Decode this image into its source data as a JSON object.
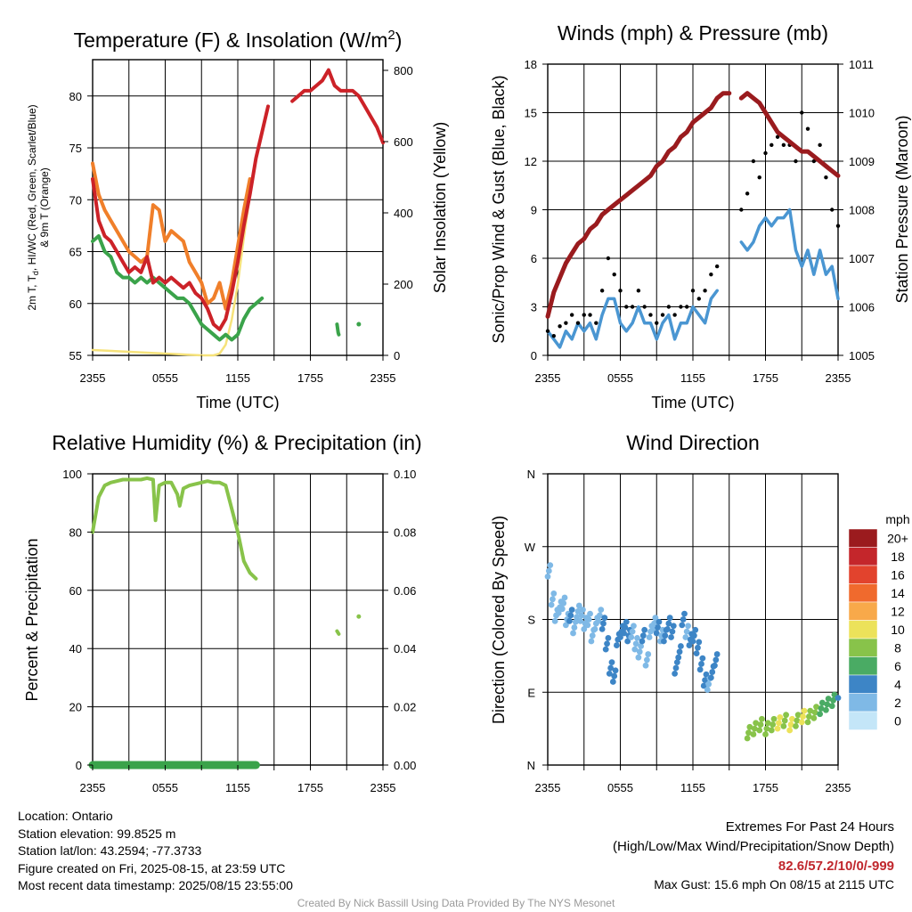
{
  "colors": {
    "temp": "#cc2228",
    "dew": "#3aa34a",
    "heat_index": "#4472c4",
    "temp9m": "#f07f2a",
    "solar": "#f6e27a",
    "pressure": "#9a1b1e",
    "sonic": "#4a96d2",
    "gust": "#000000",
    "rh": "#88c34a"
  },
  "panels": {
    "temp": {
      "title": "Temperature (F) & Insolation (W/m²)",
      "ylabel_line1": "2m T, T",
      "ylabel_sub": "d",
      "ylabel_line1b": ", HI/WC (Red, Green, Scarlet/Blue)",
      "ylabel_line2": "& 9m T (Orange)",
      "y2label": "Solar Insolation (Yellow)",
      "xlabel": "Time (UTC)",
      "yticks": [
        "55",
        "60",
        "65",
        "70",
        "75",
        "80"
      ],
      "y2ticks": [
        "0",
        "200",
        "400",
        "600",
        "800"
      ],
      "xticks": [
        "2355",
        "0555",
        "1155",
        "1755",
        "2355"
      ]
    },
    "wind": {
      "title": "Winds (mph) & Pressure (mb)",
      "ylabel": "Sonic/Prop Wind & Gust (Blue, Black)",
      "y2label": "Station Pressure (Maroon)",
      "xlabel": "Time (UTC)",
      "yticks": [
        "0",
        "3",
        "6",
        "9",
        "12",
        "15",
        "18"
      ],
      "y2ticks": [
        "1005",
        "1006",
        "1007",
        "1008",
        "1009",
        "1010",
        "1011"
      ],
      "xticks": [
        "2355",
        "0555",
        "1155",
        "1755",
        "2355"
      ]
    },
    "rh": {
      "title": "Relative Humidity (%) & Precipitation (in)",
      "ylabel": "Percent & Precipitation",
      "yticks": [
        "0",
        "20",
        "40",
        "60",
        "80",
        "100"
      ],
      "y2ticks": [
        "0.00",
        "0.02",
        "0.04",
        "0.06",
        "0.08",
        "0.10"
      ],
      "xticks": [
        "2355",
        "0555",
        "1155",
        "1755",
        "2355"
      ]
    },
    "dir": {
      "title": "Wind Direction",
      "ylabel": "Direction (Colored By Speed)",
      "yticks": [
        "N",
        "E",
        "S",
        "W",
        "N"
      ],
      "xticks": [
        "2355",
        "0555",
        "1155",
        "1755",
        "2355"
      ],
      "legend_title": "mph",
      "legend_labels": [
        "20+",
        "18",
        "16",
        "14",
        "12",
        "10",
        "8",
        "6",
        "4",
        "2",
        "0"
      ],
      "legend_colors": [
        "#9b1b1e",
        "#c4262b",
        "#e2432d",
        "#f06a2d",
        "#f8a94a",
        "#ece25a",
        "#88c34a",
        "#4aab64",
        "#3d85c6",
        "#7fb9e6",
        "#c4e6f8"
      ]
    }
  },
  "info": {
    "location": "Location: Ontario",
    "elevation": "Station elevation: 99.8525 m",
    "latlon": "Station lat/lon: 43.2594; -77.3733",
    "created": "Figure created on Fri, 2025-08-15, at 23:59 UTC",
    "recent": "Most recent data timestamp: 2025/08/15 23:55:00"
  },
  "extremes": {
    "title": "Extremes For Past 24 Hours",
    "subtitle": "(High/Low/Max Wind/Precipitation/Snow Depth)",
    "values": "82.6/57.2/10/0/-999",
    "gust": "Max Gust: 15.6 mph On 08/15 at 2115 UTC"
  },
  "credit": "Created By Nick Bassill Using Data Provided By The NYS Mesonet",
  "chart_data": [
    {
      "type": "line",
      "title": "Temperature (F) & Insolation (W/m²)",
      "xlabel": "Time (UTC)",
      "ylim": [
        55,
        83.5
      ],
      "y2lim": [
        0,
        830
      ],
      "x_hours": [
        0,
        24
      ],
      "series": [
        {
          "name": "2m T (Red)",
          "x": [
            0,
            0.5,
            1,
            1.5,
            2,
            2.5,
            3,
            3.5,
            4,
            4.5,
            5,
            5.5,
            6,
            6.5,
            7,
            7.5,
            8,
            8.5,
            9,
            9.5,
            10,
            10.5,
            11,
            11.5,
            12,
            12.5,
            13,
            13.5,
            14,
            14.5,
            15,
            15.5,
            16,
            16.5,
            17,
            17.5,
            18,
            18.5,
            19,
            19.5,
            20,
            20.5,
            21,
            21.5,
            22,
            22.5,
            23,
            23.5,
            24
          ],
          "values": [
            72,
            68,
            66.5,
            66,
            65,
            64,
            63,
            63.5,
            63,
            64.5,
            62,
            62.5,
            62,
            62.5,
            62,
            61.5,
            62,
            61,
            60.5,
            59.5,
            58,
            57.5,
            58.5,
            61,
            64,
            67.5,
            70.5,
            74,
            76.5,
            79,
            null,
            null,
            null,
            79.5,
            80,
            80.5,
            80.5,
            81,
            81.5,
            82.5,
            81,
            80.5,
            80.5,
            80.5,
            80,
            79,
            78,
            77,
            75.5
          ]
        },
        {
          "name": "9m T (Orange)",
          "x": [
            0,
            0.5,
            1,
            1.5,
            2,
            2.5,
            3,
            3.5,
            4,
            4.5,
            5,
            5.5,
            6,
            6.5,
            7,
            7.5,
            8,
            8.5,
            9,
            9.5,
            10,
            10.5,
            11,
            11.5,
            12,
            12.5,
            13
          ],
          "values": [
            73.5,
            70.5,
            69,
            68,
            67,
            66,
            65,
            64.5,
            64,
            64.5,
            69.5,
            69,
            66,
            67,
            66.5,
            66,
            64,
            63,
            62,
            60,
            60.5,
            62,
            59.5,
            62,
            65.5,
            69,
            72
          ]
        },
        {
          "name": "Td (Green)",
          "x": [
            0,
            0.5,
            1,
            1.5,
            2,
            2.5,
            3,
            3.5,
            4,
            4.5,
            5,
            5.5,
            6,
            6.5,
            7,
            7.5,
            8,
            8.5,
            9,
            9.5,
            10,
            10.5,
            11,
            11.5,
            12,
            12.5,
            13,
            13.5,
            14
          ],
          "values": [
            66,
            66.5,
            65,
            64.5,
            63,
            62.5,
            62.5,
            62,
            62.5,
            62,
            62.5,
            62,
            61.5,
            61,
            60.5,
            60.5,
            60,
            59,
            58,
            57.5,
            57,
            56.5,
            57,
            56.5,
            57,
            58.5,
            59.5,
            60,
            60.5
          ]
        },
        {
          "name": "Td (Green) late",
          "x": [
            20.2,
            20.3,
            20.35
          ],
          "values": [
            58,
            57.2,
            57
          ]
        },
        {
          "name": "Td (Green) late2",
          "x": [
            22.0
          ],
          "values": [
            58
          ]
        },
        {
          "name": "Solar Insolation (Yellow)",
          "x": [
            0,
            9,
            10,
            10.5,
            11,
            11.5,
            12,
            12.5,
            13
          ],
          "values": [
            15,
            0,
            0,
            5,
            30,
            100,
            200,
            330,
            450
          ]
        }
      ]
    },
    {
      "type": "line",
      "title": "Winds (mph) & Pressure (mb)",
      "xlabel": "Time (UTC)",
      "ylim": [
        0,
        18
      ],
      "y2lim": [
        1005,
        1011
      ],
      "series": [
        {
          "name": "Station Pressure (Maroon)",
          "x": [
            0,
            0.5,
            1,
            1.5,
            2,
            2.5,
            3,
            3.5,
            4,
            4.5,
            5,
            5.5,
            6,
            6.5,
            7,
            7.5,
            8,
            8.5,
            9,
            9.5,
            10,
            10.5,
            11,
            11.5,
            12,
            12.5,
            13,
            13.5,
            14,
            14.5,
            15,
            15.5,
            16,
            16.5,
            17,
            17.5,
            18,
            18.5,
            19,
            19.5,
            20,
            20.5,
            21,
            21.5,
            22,
            22.5,
            23,
            23.5,
            24
          ],
          "values": [
            1005.8,
            1006.3,
            1006.6,
            1006.9,
            1007.1,
            1007.3,
            1007.4,
            1007.6,
            1007.7,
            1007.9,
            1008,
            1008.1,
            1008.2,
            1008.3,
            1008.4,
            1008.5,
            1008.6,
            1008.7,
            1008.9,
            1009,
            1009.2,
            1009.3,
            1009.5,
            1009.6,
            1009.8,
            1009.9,
            1010,
            1010.1,
            1010.3,
            1010.4,
            1010.4,
            null,
            1010.3,
            1010.4,
            1010.3,
            1010.2,
            1010,
            1009.8,
            1009.6,
            1009.5,
            1009.4,
            1009.3,
            1009.2,
            1009.2,
            1009.1,
            1009,
            1008.9,
            1008.8,
            1008.7
          ]
        },
        {
          "name": "Sonic/Prop Wind (Blue)",
          "x": [
            0,
            0.5,
            1,
            1.5,
            2,
            2.5,
            3,
            3.5,
            4,
            4.5,
            5,
            5.5,
            6,
            6.5,
            7,
            7.5,
            8,
            8.5,
            9,
            9.5,
            10,
            10.5,
            11,
            11.5,
            12,
            12.5,
            13,
            13.5,
            14,
            14.5,
            15,
            15.5,
            16,
            16.5,
            17,
            17.5,
            18,
            18.5,
            19,
            19.5,
            20,
            20.5,
            21,
            21.5,
            22,
            22.5,
            23,
            23.5,
            24
          ],
          "values": [
            1.5,
            1,
            0.5,
            1.5,
            1,
            2,
            1.5,
            2,
            1,
            2.5,
            3.5,
            3.5,
            2,
            1.5,
            2,
            3,
            2,
            2,
            1,
            2,
            2.5,
            1,
            2,
            2,
            3,
            2.5,
            2,
            3.5,
            4,
            null,
            null,
            null,
            7,
            6.5,
            7,
            8,
            8.5,
            8,
            8.5,
            8.5,
            9,
            6.5,
            5.5,
            6.5,
            5,
            6.5,
            5,
            5.5,
            3.5
          ]
        },
        {
          "name": "Gust (Black)",
          "x": [
            0,
            0.5,
            1,
            1.5,
            2,
            2.5,
            3,
            3.5,
            4,
            4.5,
            5,
            5.5,
            6,
            6.5,
            7,
            7.5,
            8,
            8.5,
            9,
            9.5,
            10,
            10.5,
            11,
            11.5,
            12,
            12.5,
            13,
            13.5,
            14,
            14.5,
            15,
            15.5,
            16,
            16.5,
            17,
            17.5,
            18,
            18.5,
            19,
            19.5,
            20,
            20.5,
            21,
            21.5,
            22,
            22.5,
            23,
            23.5,
            24
          ],
          "values": [
            1.5,
            1.2,
            1.8,
            2,
            2.5,
            2,
            2.5,
            2.5,
            2,
            4,
            6,
            5,
            4,
            3,
            3,
            4,
            3,
            2.5,
            2,
            2.5,
            3,
            2.5,
            3,
            3,
            4,
            3.5,
            4,
            5,
            5.5,
            null,
            null,
            null,
            9,
            10,
            12,
            11,
            12.5,
            13,
            13.5,
            13,
            13,
            12,
            15,
            14,
            12,
            13,
            11,
            9,
            8
          ]
        }
      ]
    },
    {
      "type": "line",
      "title": "Relative Humidity (%) & Precipitation (in)",
      "ylim": [
        0,
        100
      ],
      "y2lim": [
        0,
        0.1
      ],
      "series": [
        {
          "name": "RH",
          "x": [
            0,
            0.5,
            1,
            1.5,
            2,
            2.5,
            3,
            3.5,
            4,
            4.5,
            5,
            5.2,
            5.5,
            6,
            6.5,
            7,
            7.2,
            7.5,
            8,
            8.5,
            9,
            9.5,
            10,
            10.5,
            11,
            11.5,
            12,
            12.5,
            13,
            13.5
          ],
          "values": [
            80,
            92,
            96,
            97,
            97.5,
            98,
            98,
            98,
            98,
            98.5,
            98,
            84,
            96,
            97,
            97,
            93,
            89,
            95,
            96,
            96.5,
            97,
            97.5,
            97,
            97,
            96,
            88,
            80,
            70,
            66,
            64
          ]
        },
        {
          "name": "RH late",
          "x": [
            20.2,
            20.35
          ],
          "values": [
            46,
            45
          ]
        },
        {
          "name": "RH late2",
          "x": [
            22.0
          ],
          "values": [
            51
          ]
        },
        {
          "name": "Precipitation",
          "x": [
            0,
            13.5
          ],
          "values": [
            0,
            0
          ]
        }
      ]
    },
    {
      "type": "scatter",
      "title": "Wind Direction",
      "ylabel": "Direction (Colored By Speed)",
      "ylim": [
        "N",
        "N"
      ],
      "series": [
        {
          "name": "Direction",
          "x": [
            0,
            0.3,
            0.6,
            0.9,
            1.2,
            1.5,
            1.8,
            2.1,
            2.4,
            2.7,
            3,
            3.3,
            3.6,
            3.9,
            4.2,
            4.5,
            4.8,
            5.1,
            5.4,
            5.7,
            6,
            6.3,
            6.6,
            6.9,
            7.2,
            7.5,
            7.8,
            8.1,
            8.4,
            8.7,
            9,
            9.3,
            9.6,
            9.9,
            10.2,
            10.5,
            10.8,
            11.1,
            11.4,
            11.7,
            12,
            12.3,
            12.6,
            12.9,
            13.2,
            13.5,
            13.8,
            16.5,
            17,
            17.5,
            18,
            18.5,
            19,
            19.5,
            20,
            20.5,
            21,
            21.5,
            22,
            22.5,
            23,
            23.5,
            24
          ],
          "values_deg": [
            240,
            205,
            185,
            195,
            200,
            180,
            185,
            170,
            190,
            185,
            175,
            180,
            160,
            175,
            185,
            175,
            150,
            120,
            110,
            155,
            165,
            170,
            160,
            165,
            150,
            140,
            160,
            130,
            165,
            175,
            170,
            160,
            160,
            175,
            165,
            120,
            140,
            180,
            165,
            155,
            160,
            145,
            125,
            105,
            100,
            115,
            130,
            40,
            45,
            50,
            45,
            50,
            52,
            55,
            50,
            55,
            60,
            60,
            65,
            70,
            75,
            80,
            90
          ],
          "speeds": [
            1,
            1,
            2,
            2,
            2,
            2,
            3,
            2,
            2,
            2,
            1,
            2,
            1,
            2,
            2,
            3,
            3,
            4,
            4,
            3,
            3,
            3,
            3,
            2,
            2,
            2,
            3,
            2,
            2,
            1,
            3,
            2,
            3,
            3,
            3,
            3,
            3,
            3,
            2,
            3,
            3,
            3,
            3,
            3,
            2,
            3,
            3,
            7,
            8,
            8,
            7,
            8,
            9,
            8,
            9,
            8,
            10,
            8,
            7,
            6,
            6,
            5,
            4
          ]
        }
      ]
    }
  ]
}
